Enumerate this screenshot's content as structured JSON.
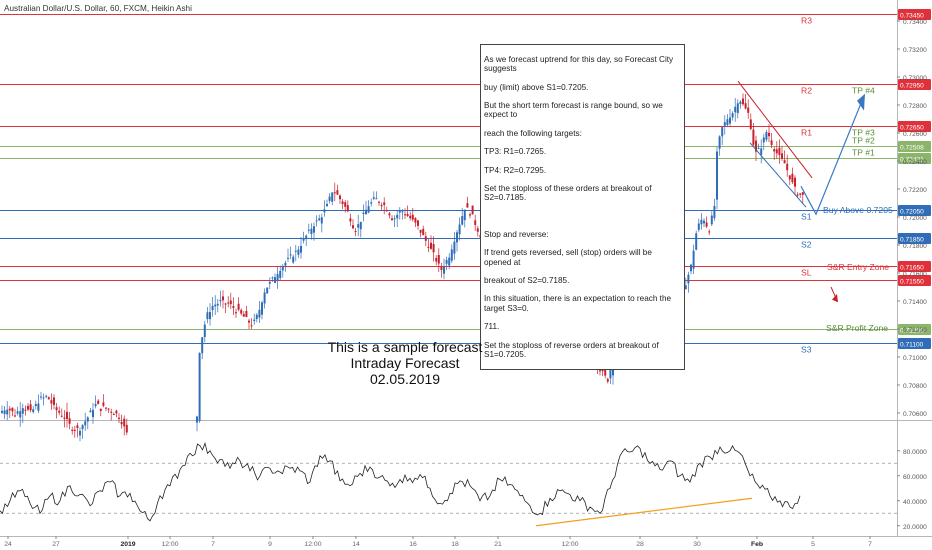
{
  "header": {
    "title": "Australian Dollar/U.S. Dollar, 60, FXCM, Heikin Ashi"
  },
  "note_lines": [
    "As we forecast uptrend for this day, so Forecast City suggests",
    "buy (limit) above S1=0.7205.",
    "But the short term forecast is range bound, so we expect to",
    "reach the following targets:",
    "TP3: R1=0.7265.",
    "TP4: R2=0.7295.",
    "Set the stoploss of these orders at breakout of S2=0.7185.",
    "",
    "Stop and reverse:",
    "If trend gets reversed, sell (stop) orders will be opened at",
    "breakout of S2=0.7185.",
    "In this situation, there is an expectation to reach the target S3=0.",
    "711.",
    "Set the stoploss of reverse orders at breakout of S1=0.7205."
  ],
  "caption": {
    "line1": "This is a sample forecast",
    "line2": "Intraday Forecast",
    "line3": "02.05.2019"
  },
  "annotations": {
    "buy_above": "Buy Above 0.7205",
    "entry_zone": "S&R Entry Zone",
    "profit_zone": "S&R Profit Zone"
  },
  "colors": {
    "resistance": "#e0303a",
    "support": "#2f6db8",
    "takeprofit": "#8bb56a",
    "candle_up": "#2f6db8",
    "candle_down": "#c8202c",
    "rsi_line": "#222222",
    "rsi_trend": "#f0a020"
  },
  "chart_data": {
    "type": "line",
    "series_type": "heikin_ashi_candles",
    "symbol": "Australian Dollar/U.S. Dollar",
    "timeframe": "60",
    "source": "FXCM",
    "ylim": [
      0.7055,
      0.7355
    ],
    "price_ticks": [
      "0.73400",
      "0.73200",
      "0.73000",
      "0.72800",
      "0.72600",
      "0.72400",
      "0.72200",
      "0.72000",
      "0.71800",
      "0.71600",
      "0.71400",
      "0.71200",
      "0.71000",
      "0.70800",
      "0.70600"
    ],
    "x_ticks": [
      "24",
      "27",
      "2019",
      "12:00",
      "7",
      "9",
      "12:00",
      "14",
      "16",
      "18",
      "21",
      "12:00",
      "28",
      "30",
      "Feb",
      "5",
      "7"
    ],
    "levels": [
      {
        "label": "R3",
        "price": 0.7345,
        "tag": "0.73450",
        "kind": "resistance"
      },
      {
        "label": "R2",
        "price": 0.7295,
        "tag": "0.72950",
        "kind": "resistance"
      },
      {
        "label": "R1",
        "price": 0.7265,
        "tag": "0.72650",
        "kind": "resistance"
      },
      {
        "label": "TP #2",
        "price": 0.72508,
        "tag": "0.72508",
        "kind": "takeprofit"
      },
      {
        "label": "TP #1",
        "price": 0.72421,
        "tag": "0.72421",
        "kind": "takeprofit"
      },
      {
        "label": "S1",
        "price": 0.7205,
        "tag": "0.72050",
        "kind": "support"
      },
      {
        "label": "S2",
        "price": 0.7185,
        "tag": "0.71850",
        "kind": "support"
      },
      {
        "label": "SL",
        "price": 0.7165,
        "tag": "0.71650",
        "kind": "resistance"
      },
      {
        "label": "",
        "price": 0.7155,
        "tag": "0.71550",
        "kind": "resistance"
      },
      {
        "label": "",
        "price": 0.712,
        "tag": "0.71200",
        "kind": "takeprofit"
      },
      {
        "label": "S3",
        "price": 0.711,
        "tag": "0.71100",
        "kind": "support"
      }
    ],
    "targets": [
      "TP #4",
      "TP #3"
    ],
    "price_path": [
      [
        0,
        0.7061
      ],
      [
        6,
        0.7064
      ],
      [
        14,
        0.7059
      ],
      [
        22,
        0.7065
      ],
      [
        30,
        0.706
      ],
      [
        38,
        0.7069
      ],
      [
        46,
        0.7072
      ],
      [
        54,
        0.7063
      ],
      [
        62,
        0.7058
      ],
      [
        70,
        0.705
      ],
      [
        78,
        0.7048
      ],
      [
        86,
        0.7056
      ],
      [
        94,
        0.7066
      ],
      [
        102,
        0.7064
      ],
      [
        110,
        0.7062
      ],
      [
        118,
        0.7058
      ],
      [
        126,
        0.7045
      ],
      [
        150,
        0.7045
      ],
      [
        170,
        0.7046
      ],
      [
        188,
        0.7047
      ],
      [
        196,
        0.7058
      ],
      [
        198,
        0.7102
      ],
      [
        202,
        0.7118
      ],
      [
        206,
        0.713
      ],
      [
        212,
        0.7137
      ],
      [
        220,
        0.7139
      ],
      [
        228,
        0.7138
      ],
      [
        236,
        0.7133
      ],
      [
        244,
        0.7128
      ],
      [
        252,
        0.7122
      ],
      [
        258,
        0.7133
      ],
      [
        264,
        0.7148
      ],
      [
        272,
        0.7156
      ],
      [
        280,
        0.7164
      ],
      [
        288,
        0.717
      ],
      [
        296,
        0.7176
      ],
      [
        304,
        0.7185
      ],
      [
        312,
        0.7194
      ],
      [
        320,
        0.72
      ],
      [
        326,
        0.7208
      ],
      [
        332,
        0.722
      ],
      [
        338,
        0.7214
      ],
      [
        346,
        0.7205
      ],
      [
        354,
        0.719
      ],
      [
        360,
        0.7198
      ],
      [
        368,
        0.7209
      ],
      [
        376,
        0.7213
      ],
      [
        384,
        0.7208
      ],
      [
        392,
        0.7198
      ],
      [
        400,
        0.7205
      ],
      [
        408,
        0.72
      ],
      [
        416,
        0.7194
      ],
      [
        424,
        0.7184
      ],
      [
        432,
        0.7174
      ],
      [
        440,
        0.7162
      ],
      [
        448,
        0.7172
      ],
      [
        456,
        0.719
      ],
      [
        464,
        0.7207
      ],
      [
        470,
        0.7203
      ],
      [
        476,
        0.7192
      ],
      [
        484,
        0.718
      ],
      [
        492,
        0.717
      ],
      [
        500,
        0.7165
      ],
      [
        508,
        0.716
      ],
      [
        516,
        0.7152
      ],
      [
        524,
        0.7145
      ],
      [
        532,
        0.7134
      ],
      [
        540,
        0.7125
      ],
      [
        548,
        0.7133
      ],
      [
        556,
        0.7142
      ],
      [
        564,
        0.7148
      ],
      [
        572,
        0.7156
      ],
      [
        578,
        0.7163
      ],
      [
        582,
        0.7142
      ],
      [
        586,
        0.711
      ],
      [
        592,
        0.7099
      ],
      [
        600,
        0.709
      ],
      [
        606,
        0.7084
      ],
      [
        612,
        0.7097
      ],
      [
        618,
        0.7118
      ],
      [
        622,
        0.7142
      ],
      [
        628,
        0.7168
      ],
      [
        634,
        0.7192
      ],
      [
        640,
        0.72
      ],
      [
        646,
        0.7187
      ],
      [
        652,
        0.7177
      ],
      [
        658,
        0.7165
      ],
      [
        664,
        0.7155
      ],
      [
        670,
        0.716
      ],
      [
        678,
        0.7157
      ],
      [
        684,
        0.7151
      ],
      [
        690,
        0.7165
      ],
      [
        696,
        0.7192
      ],
      [
        702,
        0.72
      ],
      [
        708,
        0.719
      ],
      [
        714,
        0.721
      ],
      [
        716,
        0.7245
      ],
      [
        720,
        0.7262
      ],
      [
        726,
        0.727
      ],
      [
        732,
        0.7275
      ],
      [
        738,
        0.7285
      ],
      [
        742,
        0.728
      ],
      [
        748,
        0.7273
      ],
      [
        754,
        0.7245
      ],
      [
        760,
        0.725
      ],
      [
        766,
        0.7262
      ],
      [
        772,
        0.725
      ],
      [
        778,
        0.7243
      ],
      [
        784,
        0.7238
      ],
      [
        790,
        0.7226
      ],
      [
        796,
        0.7217
      ],
      [
        802,
        0.7215
      ]
    ],
    "rsi_panel": {
      "ylim": [
        15,
        95
      ],
      "ticks": [
        "80.0000",
        "60.0000",
        "40.0000",
        "20.0000"
      ],
      "guide_levels": [
        70,
        30
      ],
      "path": [
        [
          0,
          32
        ],
        [
          10,
          40
        ],
        [
          20,
          48
        ],
        [
          30,
          38
        ],
        [
          40,
          30
        ],
        [
          50,
          44
        ],
        [
          60,
          40
        ],
        [
          70,
          52
        ],
        [
          80,
          45
        ],
        [
          90,
          36
        ],
        [
          100,
          48
        ],
        [
          110,
          55
        ],
        [
          120,
          44
        ],
        [
          130,
          46
        ],
        [
          140,
          32
        ],
        [
          150,
          24
        ],
        [
          160,
          44
        ],
        [
          170,
          52
        ],
        [
          180,
          65
        ],
        [
          190,
          78
        ],
        [
          200,
          84
        ],
        [
          210,
          80
        ],
        [
          220,
          73
        ],
        [
          230,
          66
        ],
        [
          240,
          72
        ],
        [
          250,
          64
        ],
        [
          260,
          60
        ],
        [
          270,
          66
        ],
        [
          280,
          63
        ],
        [
          290,
          66
        ],
        [
          300,
          64
        ],
        [
          310,
          55
        ],
        [
          320,
          76
        ],
        [
          330,
          72
        ],
        [
          340,
          56
        ],
        [
          350,
          52
        ],
        [
          360,
          62
        ],
        [
          370,
          67
        ],
        [
          380,
          59
        ],
        [
          390,
          52
        ],
        [
          400,
          57
        ],
        [
          410,
          58
        ],
        [
          420,
          61
        ],
        [
          430,
          50
        ],
        [
          440,
          38
        ],
        [
          450,
          46
        ],
        [
          460,
          56
        ],
        [
          470,
          52
        ],
        [
          480,
          40
        ],
        [
          490,
          44
        ],
        [
          500,
          57
        ],
        [
          510,
          53
        ],
        [
          520,
          44
        ],
        [
          530,
          36
        ],
        [
          540,
          30
        ],
        [
          550,
          42
        ],
        [
          560,
          48
        ],
        [
          570,
          45
        ],
        [
          580,
          40
        ],
        [
          590,
          35
        ],
        [
          600,
          30
        ],
        [
          610,
          50
        ],
        [
          620,
          76
        ],
        [
          630,
          79
        ],
        [
          640,
          82
        ],
        [
          650,
          70
        ],
        [
          660,
          65
        ],
        [
          670,
          72
        ],
        [
          680,
          60
        ],
        [
          690,
          55
        ],
        [
          700,
          70
        ],
        [
          710,
          75
        ],
        [
          720,
          83
        ],
        [
          730,
          80
        ],
        [
          740,
          78
        ],
        [
          750,
          60
        ],
        [
          760,
          50
        ],
        [
          770,
          44
        ],
        [
          780,
          40
        ],
        [
          790,
          35
        ],
        [
          800,
          44
        ]
      ],
      "trendline": [
        [
          536,
          20
        ],
        [
          752,
          42
        ]
      ]
    }
  }
}
